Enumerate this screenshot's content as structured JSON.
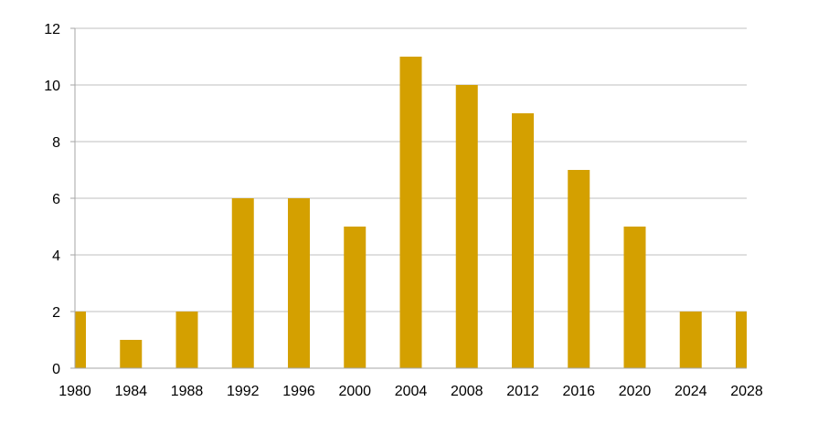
{
  "colors": {
    "bar": "#D4A000",
    "grid": "#bfbfbf",
    "axis": "#a6a6a6",
    "text": "#000000"
  },
  "chart_data": {
    "type": "bar",
    "title": "",
    "xlabel": "",
    "ylabel": "",
    "categories": [
      "1980",
      "1984",
      "1988",
      "1992",
      "1996",
      "2000",
      "2004",
      "2008",
      "2012",
      "2016",
      "2020",
      "2024",
      "2028"
    ],
    "values": [
      2,
      1,
      2,
      6,
      6,
      5,
      11,
      10,
      9,
      7,
      5,
      2,
      2
    ],
    "ylim": [
      0,
      12
    ],
    "yticks": [
      0,
      2,
      4,
      6,
      8,
      10,
      12
    ],
    "grid": true,
    "legend": "none"
  }
}
